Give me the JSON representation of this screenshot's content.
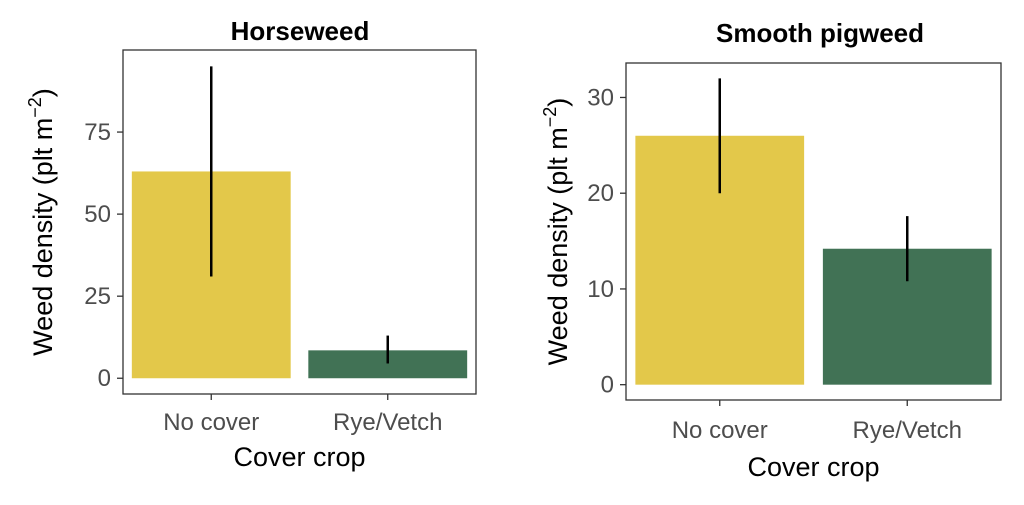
{
  "chart_data": [
    {
      "type": "bar",
      "title": "Horseweed",
      "xlabel": "Cover crop",
      "ylabel_main": "Weed density (plt m",
      "ylabel_sup": "−2",
      "ylabel_close": ")",
      "categories": [
        "No cover",
        "Rye/Vetch"
      ],
      "values": [
        63,
        8.5
      ],
      "error_low": [
        31,
        4.5
      ],
      "error_high": [
        95,
        13
      ],
      "ylim": [
        -4.8,
        100
      ],
      "yticks": [
        0,
        25,
        50,
        75
      ],
      "colors": [
        "#e3c84a",
        "#417255"
      ],
      "grid": false
    },
    {
      "type": "bar",
      "title": "Smooth pigweed",
      "xlabel": "Cover crop",
      "ylabel_main": "Weed density (plt m",
      "ylabel_sup": "−2",
      "ylabel_close": ")",
      "categories": [
        "No cover",
        "Rye/Vetch"
      ],
      "values": [
        26,
        14.2
      ],
      "error_low": [
        20,
        10.8
      ],
      "error_high": [
        32,
        17.6
      ],
      "ylim": [
        -1.6,
        33.6
      ],
      "yticks": [
        0,
        10,
        20,
        30
      ],
      "colors": [
        "#e3c84a",
        "#417255"
      ],
      "grid": false
    }
  ]
}
